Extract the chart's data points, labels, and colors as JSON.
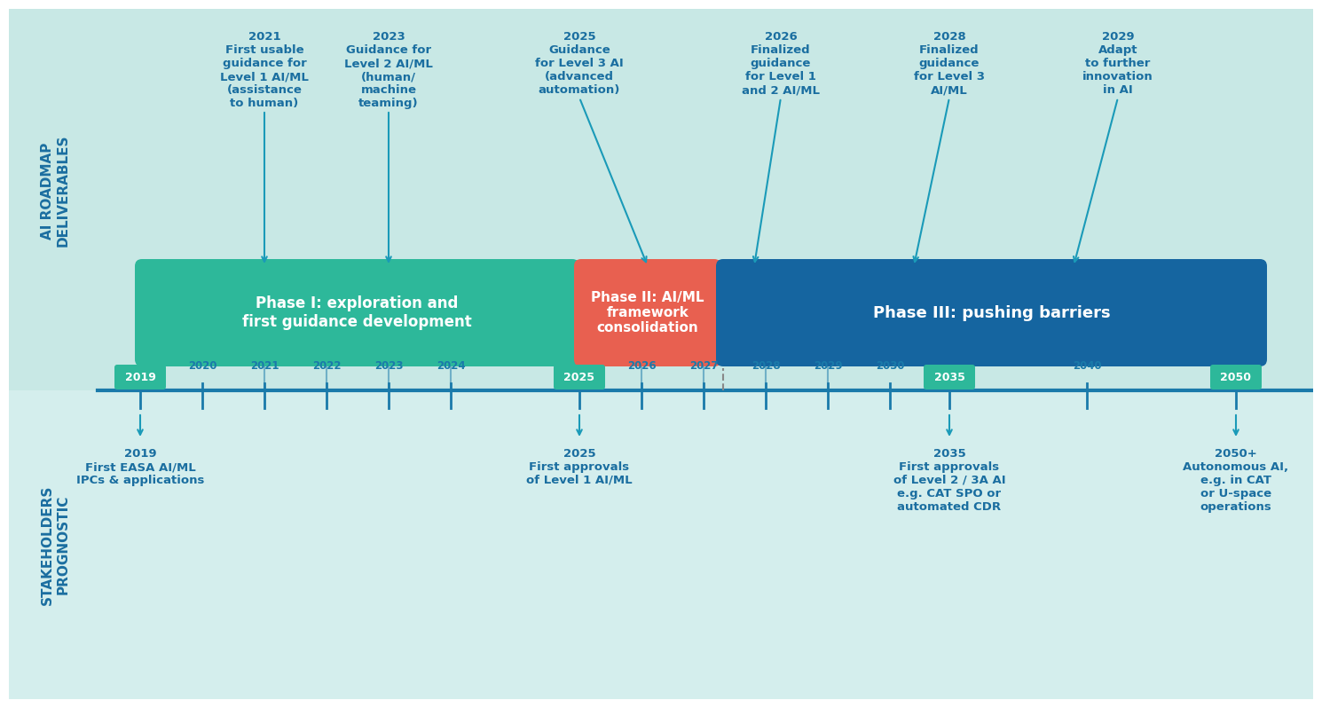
{
  "bg_top": "#c8e8e5",
  "bg_bottom": "#d4eeed",
  "divider_color": "#1a7aaa",
  "label_color_blue": "#1a6ea0",
  "phase1_color": "#2db89a",
  "phase2_color": "#e86050",
  "phase3_color": "#1565a0",
  "timeline_color": "#1a7aaa",
  "highlight_box_color": "#2db89a",
  "arrow_color": "#1a9ab8",
  "phase1_text": "Phase I: exploration and\nfirst guidance development",
  "phase2_text": "Phase II: AI/ML\nframework\nconsolidation",
  "phase3_text": "Phase III: pushing barriers",
  "timeline_years": [
    "2019",
    "2020",
    "2021",
    "2022",
    "2023",
    "2024",
    "2025",
    "2026",
    "2027",
    "2028",
    "2029",
    "2030",
    "2035",
    "2040",
    "2050"
  ],
  "highlight_years": [
    "2019",
    "2025",
    "2035",
    "2050"
  ]
}
